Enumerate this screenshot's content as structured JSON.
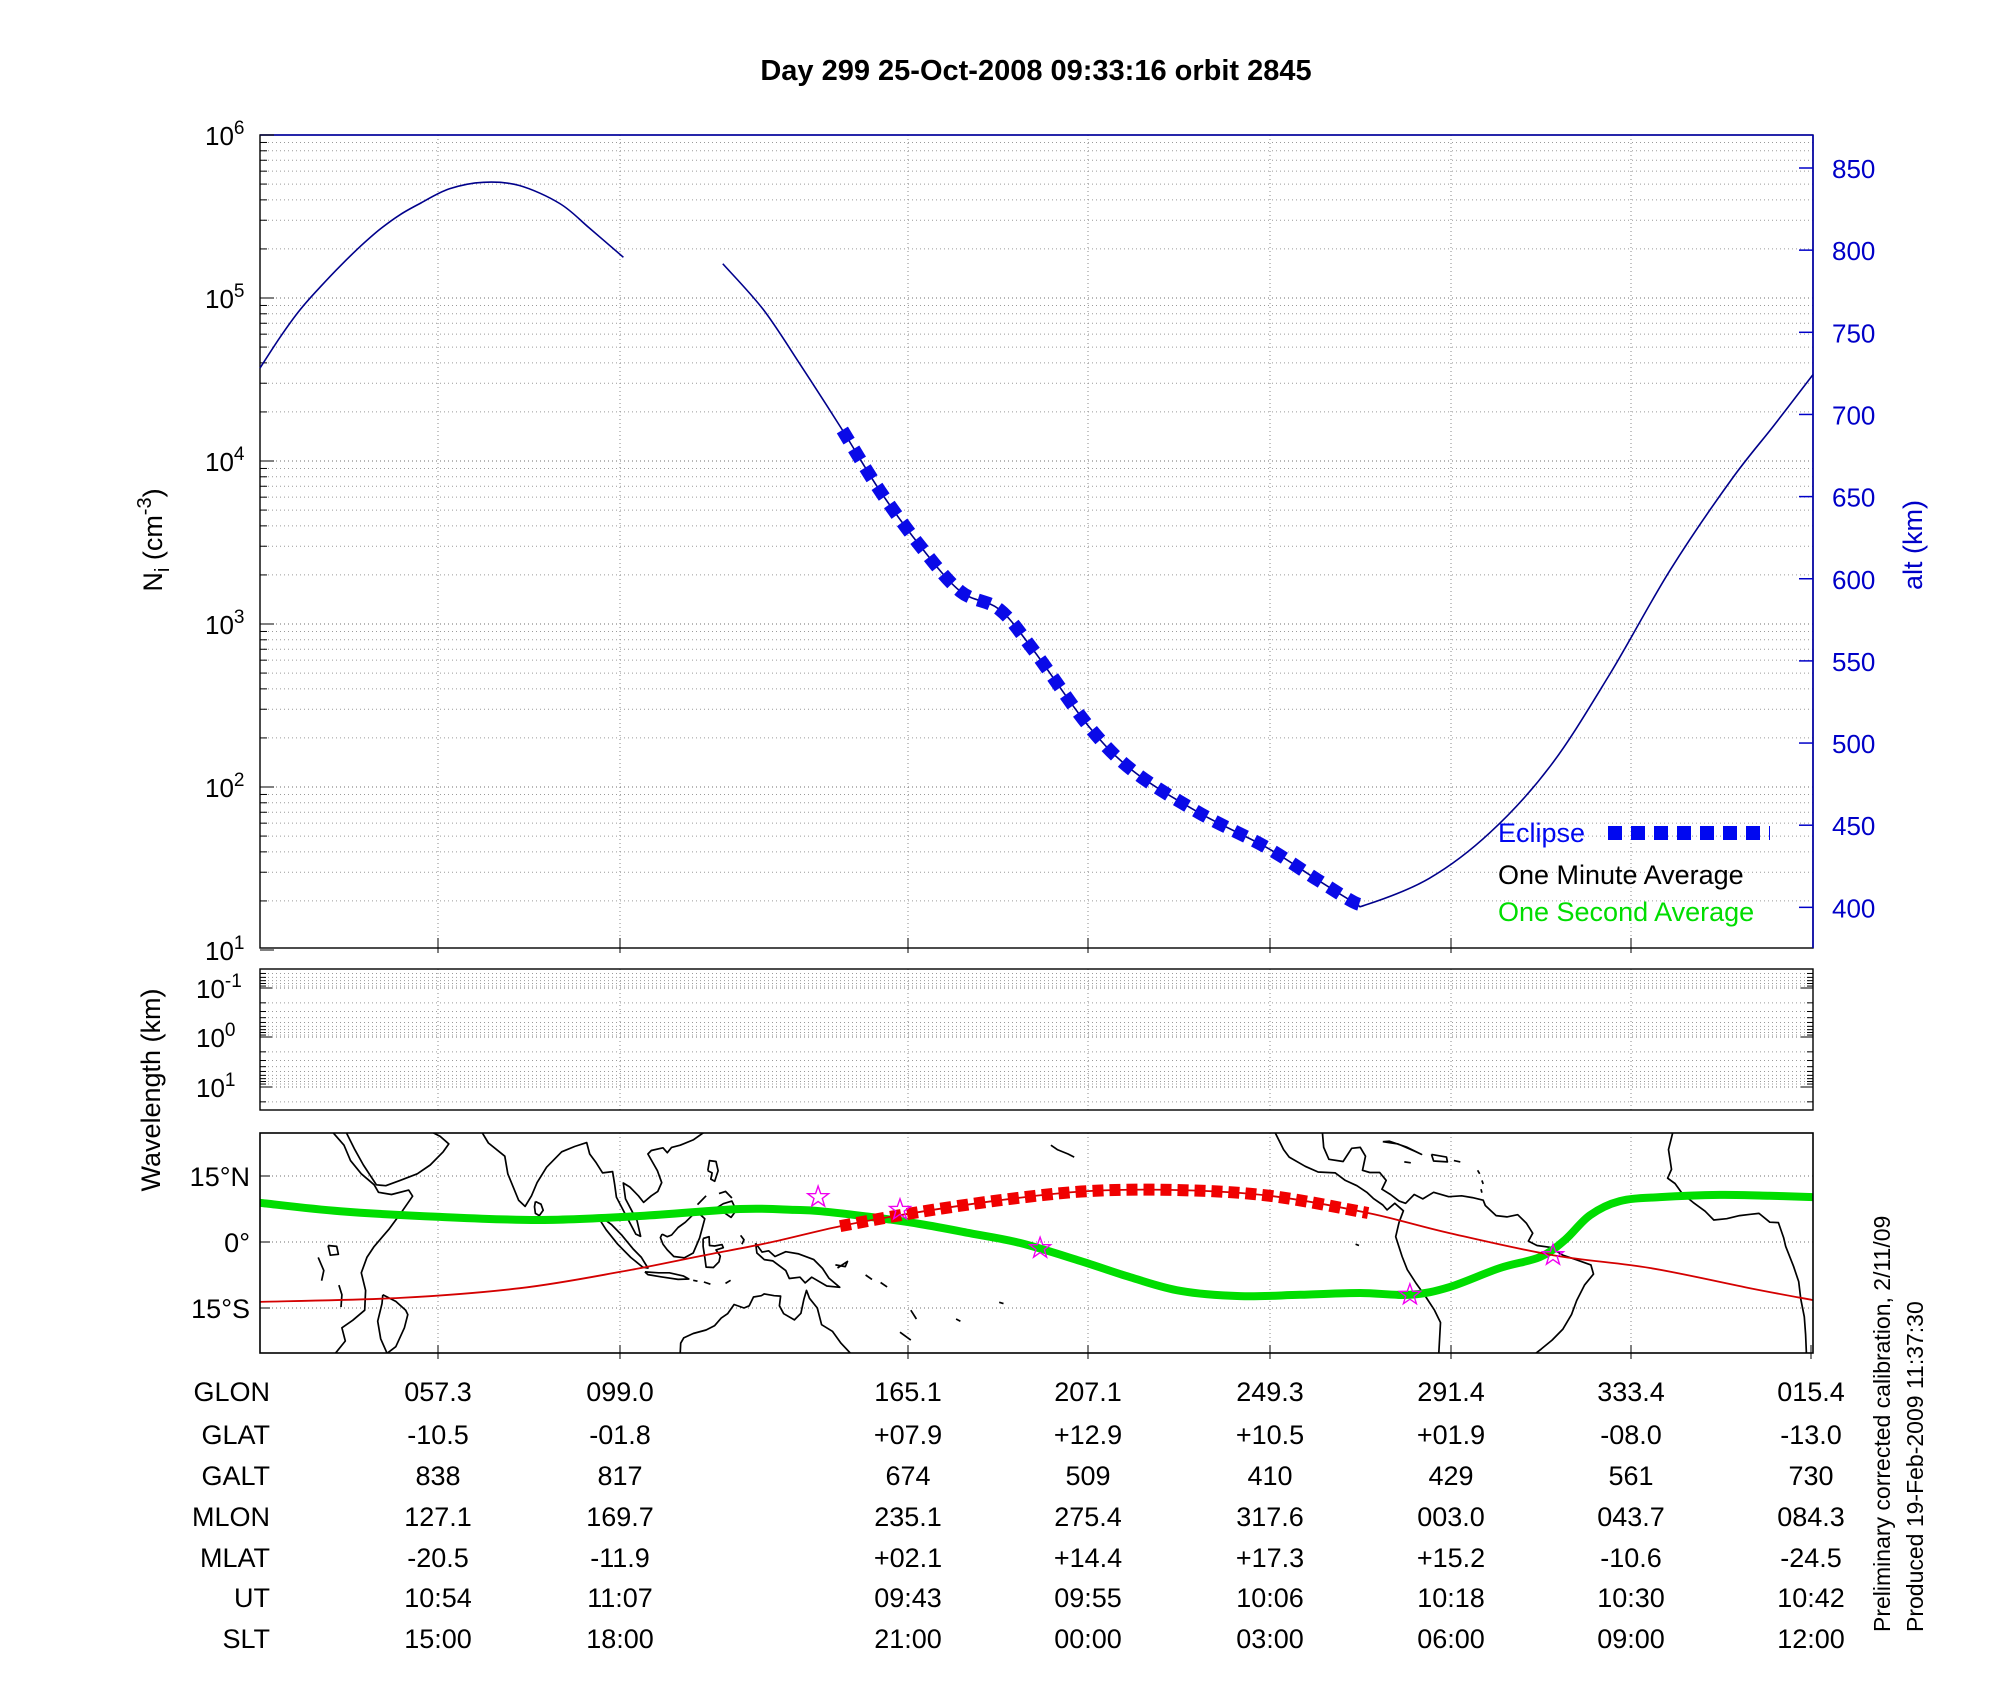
{
  "title": "Day 299  25-Oct-2008 09:33:16   orbit 2845",
  "panels": {
    "density": {
      "ylabel_parts": {
        "base": "N",
        "sub": "i",
        "mid": " (cm",
        "sup": "-3",
        "end": ")"
      },
      "ytick_exps": [
        "6",
        "5",
        "4",
        "3",
        "2",
        "1"
      ],
      "ylabel_right": "alt (km)",
      "yticks_right": [
        "850",
        "800",
        "750",
        "700",
        "650",
        "600",
        "550",
        "500",
        "450",
        "400"
      ]
    },
    "wavelength": {
      "ylabel": "Wavelength (km)",
      "ytick_exps": [
        "-1",
        "0",
        "1"
      ]
    },
    "map": {
      "yticks": [
        "15°N",
        "0°",
        "15°S"
      ]
    }
  },
  "legend": [
    {
      "label": "Eclipse",
      "color": "#0008f0",
      "style": "dashed"
    },
    {
      "label": "One Minute Average",
      "color": "#000000",
      "style": "none"
    },
    {
      "label": "One Second Average",
      "color": "#00dd00",
      "style": "none"
    }
  ],
  "table": {
    "rows": [
      {
        "label": "GLON",
        "values": [
          "057.3",
          "099.0",
          "165.1",
          "207.1",
          "249.3",
          "291.4",
          "333.4",
          "015.4"
        ]
      },
      {
        "label": "GLAT",
        "values": [
          "-10.5",
          "-01.8",
          "+07.9",
          "+12.9",
          "+10.5",
          "+01.9",
          "-08.0",
          "-13.0"
        ]
      },
      {
        "label": "GALT",
        "values": [
          "838",
          "817",
          "674",
          "509",
          "410",
          "429",
          "561",
          "730"
        ]
      },
      {
        "label": "MLON",
        "values": [
          "127.1",
          "169.7",
          "235.1",
          "275.4",
          "317.6",
          "003.0",
          "043.7",
          "084.3"
        ]
      },
      {
        "label": "MLAT",
        "values": [
          "-20.5",
          "-11.9",
          "+02.1",
          "+14.4",
          "+17.3",
          "+15.2",
          "-10.6",
          "-24.5"
        ]
      },
      {
        "label": "UT",
        "values": [
          "10:54",
          "11:07",
          "09:43",
          "09:55",
          "10:06",
          "10:18",
          "10:30",
          "10:42"
        ]
      },
      {
        "label": "SLT",
        "values": [
          "15:00",
          "18:00",
          "21:00",
          "00:00",
          "03:00",
          "06:00",
          "09:00",
          "12:00"
        ]
      }
    ]
  },
  "sidenotes": [
    "Preliminary corrected calibration, 2/11/09",
    "Produced 19-Feb-2009 11:37:30"
  ],
  "chart_data": [
    {
      "type": "line",
      "panel": "ion_density",
      "title": "Day 299  25-Oct-2008 09:33:16   orbit 2845",
      "ylabel": "Ni (cm-3)",
      "y_scale": "log",
      "ylim": [
        10,
        1000000
      ],
      "ylabel_right": "alt (km)",
      "right_axis_ticks_km": [
        850,
        800,
        750,
        700,
        650,
        600,
        550,
        500,
        450,
        400
      ],
      "altitude_at_columns_km": [
        838,
        817,
        674,
        509,
        410,
        429,
        561,
        730
      ],
      "grid": true,
      "legend_position": "lower right",
      "series": [
        {
          "name": "ion-density-pre-gap",
          "color": "#00008b",
          "width": 1.6,
          "style": "solid",
          "points_frac_log10": [
            [
              0.0,
              4.57
            ],
            [
              0.013,
              4.76
            ],
            [
              0.026,
              4.93
            ],
            [
              0.039,
              5.07
            ],
            [
              0.052,
              5.2
            ],
            [
              0.065,
              5.32
            ],
            [
              0.077,
              5.42
            ],
            [
              0.09,
              5.51
            ],
            [
              0.103,
              5.58
            ],
            [
              0.122,
              5.67
            ],
            [
              0.144,
              5.71
            ],
            [
              0.167,
              5.69
            ],
            [
              0.193,
              5.58
            ],
            [
              0.212,
              5.43
            ],
            [
              0.234,
              5.25
            ]
          ]
        },
        {
          "name": "ion-density-post-gap",
          "color": "#00008b",
          "width": 1.6,
          "style": "solid",
          "points_frac_log10": [
            [
              0.298,
              5.21
            ],
            [
              0.324,
              4.93
            ],
            [
              0.348,
              4.59
            ],
            [
              0.375,
              4.19
            ],
            [
              0.399,
              3.82
            ],
            [
              0.425,
              3.48
            ],
            [
              0.451,
              3.2
            ],
            [
              0.476,
              3.09
            ],
            [
              0.498,
              2.84
            ],
            [
              0.533,
              2.38
            ],
            [
              0.562,
              2.1
            ],
            [
              0.605,
              1.84
            ],
            [
              0.648,
              1.63
            ],
            [
              0.681,
              1.43
            ],
            [
              0.705,
              1.29
            ],
            [
              0.713,
              1.28
            ],
            [
              0.753,
              1.44
            ],
            [
              0.792,
              1.72
            ],
            [
              0.831,
              2.13
            ],
            [
              0.869,
              2.69
            ],
            [
              0.908,
              3.33
            ],
            [
              0.947,
              3.88
            ],
            [
              0.975,
              4.22
            ],
            [
              1.0,
              4.53
            ]
          ]
        },
        {
          "name": "eclipse-segment",
          "color": "#0a0ae8",
          "width": 13,
          "style": "dashed",
          "points_frac_log10": [
            [
              0.375,
              4.19
            ],
            [
              0.399,
              3.82
            ],
            [
              0.425,
              3.48
            ],
            [
              0.451,
              3.2
            ],
            [
              0.476,
              3.09
            ],
            [
              0.498,
              2.84
            ],
            [
              0.533,
              2.38
            ],
            [
              0.562,
              2.1
            ],
            [
              0.605,
              1.84
            ],
            [
              0.648,
              1.63
            ],
            [
              0.681,
              1.43
            ],
            [
              0.705,
              1.29
            ],
            [
              0.713,
              1.28
            ]
          ]
        }
      ]
    },
    {
      "type": "line",
      "panel": "wavelength",
      "ylabel": "Wavelength (km)",
      "y_scale": "log-reversed",
      "yticks": [
        0.1,
        1,
        10
      ],
      "grid": true,
      "series": []
    },
    {
      "type": "map",
      "panel": "ground_track",
      "lat_ticks_deg": [
        15,
        0,
        -15
      ],
      "lon_ticks_deg": [
        57.3,
        99.0,
        165.1,
        207.1,
        249.3,
        291.4,
        333.4,
        15.4
      ],
      "series": [
        {
          "name": "one-second-average-track",
          "color": "#00dd00",
          "width": 8,
          "style": "solid",
          "points_lonlat": [
            [
              16.0,
              8.9
            ],
            [
              34.6,
              7.0
            ],
            [
              57.8,
              5.7
            ],
            [
              81.0,
              5.0
            ],
            [
              104.2,
              5.9
            ],
            [
              127.4,
              7.5
            ],
            [
              140.0,
              7.3
            ],
            [
              146.0,
              7.0
            ],
            [
              157.5,
              5.7
            ],
            [
              169.1,
              4.1
            ],
            [
              180.7,
              2.0
            ],
            [
              192.3,
              -0.2
            ],
            [
              206.3,
              -4.3
            ],
            [
              217.9,
              -8.0
            ],
            [
              229.5,
              -11.1
            ],
            [
              243.4,
              -12.3
            ],
            [
              257.3,
              -12.0
            ],
            [
              271.2,
              -11.6
            ],
            [
              282.8,
              -12.0
            ],
            [
              292.1,
              -10.2
            ],
            [
              303.7,
              -5.9
            ],
            [
              313.0,
              -3.4
            ],
            [
              318.8,
              0.5
            ],
            [
              324.6,
              6.1
            ],
            [
              331.5,
              9.3
            ],
            [
              340.8,
              10.2
            ],
            [
              354.7,
              10.7
            ],
            [
              366.3,
              10.5
            ],
            [
              376.3,
              10.2
            ]
          ]
        },
        {
          "name": "magnetic-equator",
          "color": "#d40000",
          "width": 1.8,
          "style": "solid",
          "points_lonlat": [
            [
              16.0,
              -13.6
            ],
            [
              48.5,
              -12.7
            ],
            [
              76.3,
              -10.5
            ],
            [
              99.5,
              -6.8
            ],
            [
              118.1,
              -3.2
            ],
            [
              133.9,
              -0.2
            ],
            [
              150.6,
              3.6
            ],
            [
              166.4,
              6.4
            ],
            [
              187.7,
              9.5
            ],
            [
              208.6,
              11.6
            ],
            [
              229.5,
              11.8
            ],
            [
              250.3,
              10.5
            ],
            [
              273.1,
              6.6
            ],
            [
              292.1,
              2.0
            ],
            [
              316.0,
              -3.0
            ],
            [
              338.5,
              -5.9
            ],
            [
              361.7,
              -10.5
            ],
            [
              376.3,
              -13.2
            ]
          ]
        },
        {
          "name": "eclipse-ground-track",
          "color": "#f00000",
          "width": 12,
          "style": "dashed",
          "points_lonlat": [
            [
              150.6,
              3.6
            ],
            [
              166.4,
              6.4
            ],
            [
              187.7,
              9.5
            ],
            [
              208.6,
              11.6
            ],
            [
              229.5,
              11.8
            ],
            [
              250.3,
              10.5
            ],
            [
              273.1,
              6.6
            ]
          ]
        },
        {
          "name": "ground-stations",
          "color": "#f000f0",
          "marker": "star",
          "points_lonlat": [
            [
              145.5,
              10.2
            ],
            [
              164.5,
              7.3
            ],
            [
              197.0,
              -1.4
            ],
            [
              282.8,
              -12.0
            ],
            [
              316.0,
              -3.0
            ]
          ]
        }
      ]
    }
  ]
}
